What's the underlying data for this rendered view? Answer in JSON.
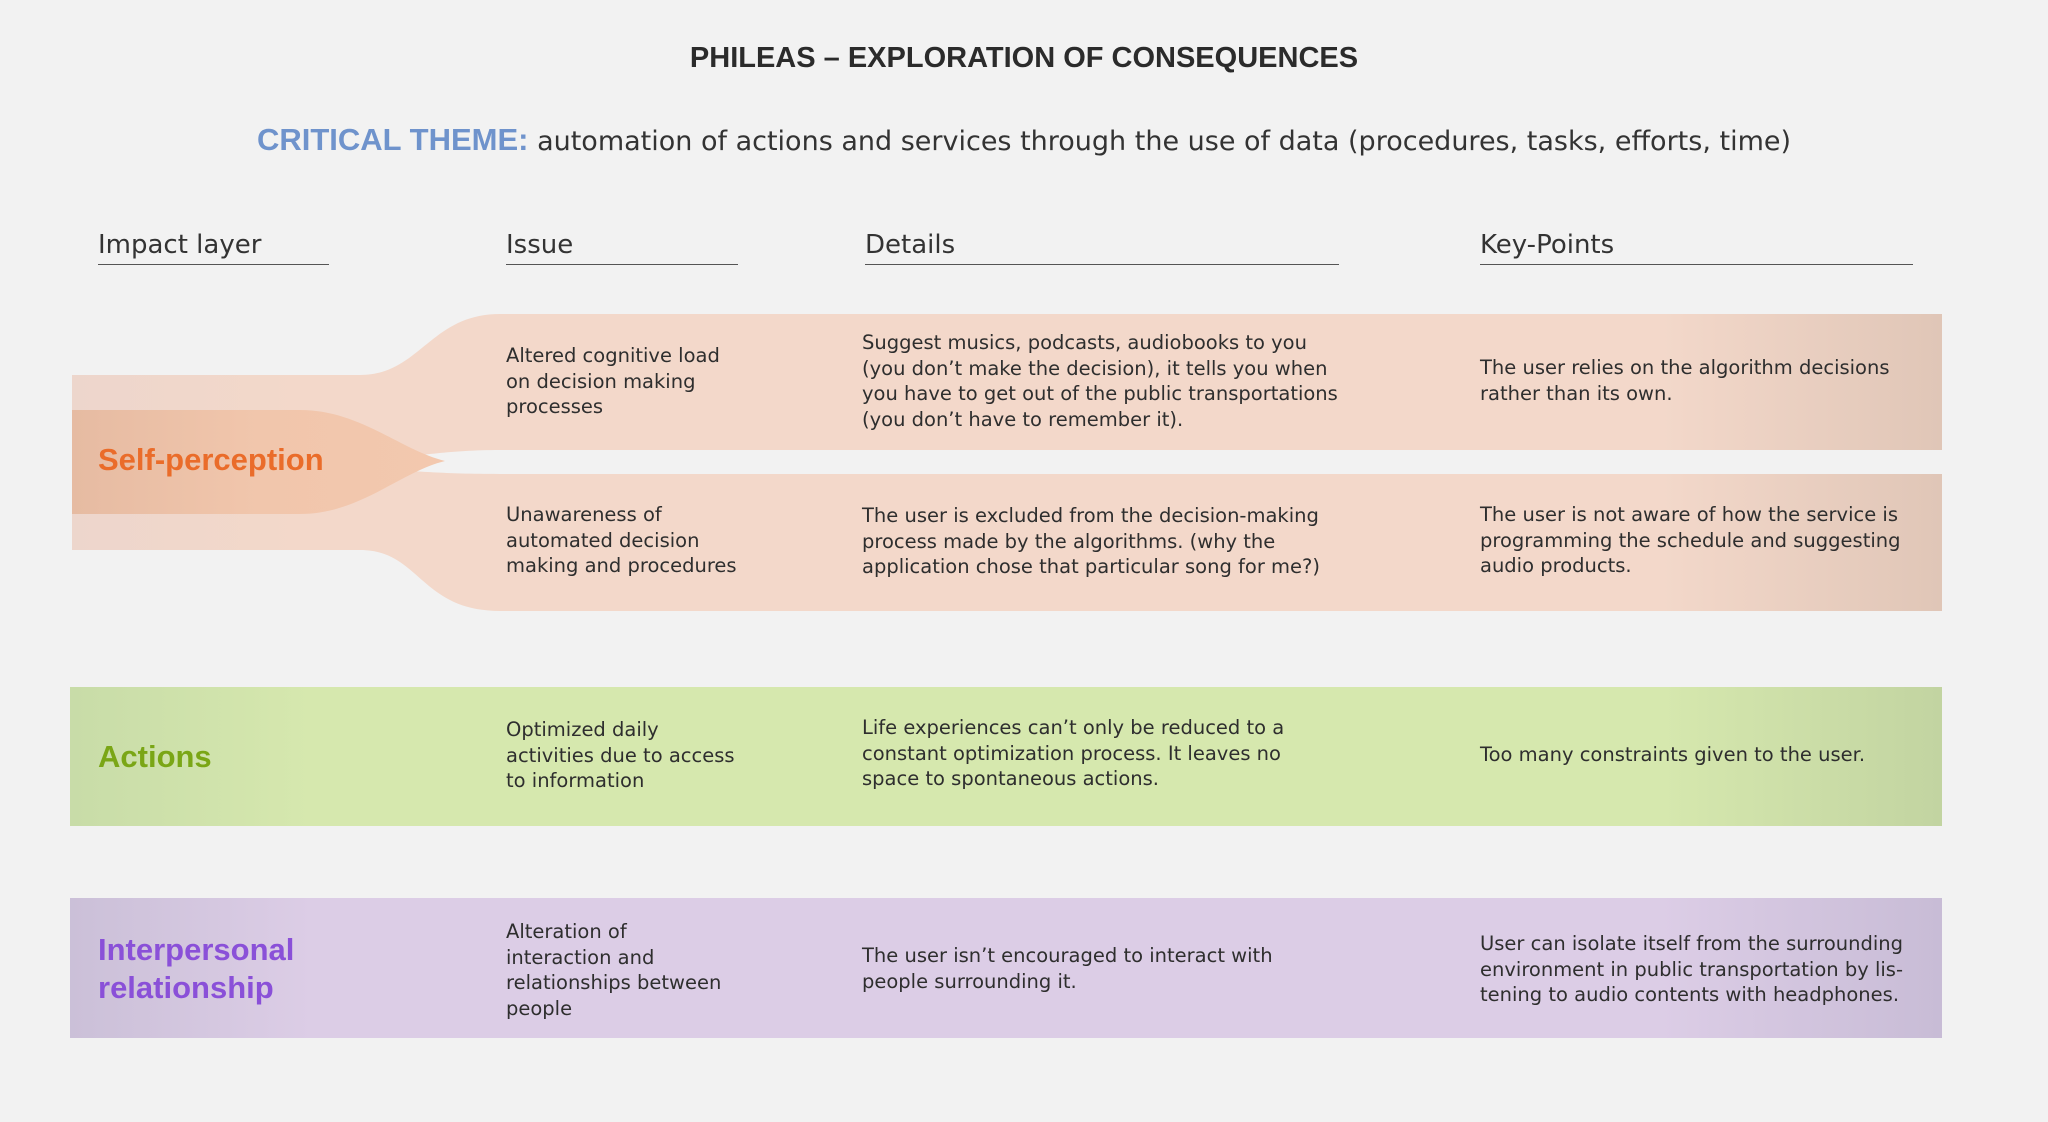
{
  "title": "PHILEAS – EXPLORATION OF CONSEQUENCES",
  "critical_theme": {
    "label": "CRITICAL THEME:",
    "text": "automation of actions and services through the use of data (procedures, tasks, efforts, time)"
  },
  "columns": [
    "Impact layer",
    "Issue",
    "Details",
    "Key-Points"
  ],
  "layers": [
    {
      "name": "Self-perception",
      "color": "#ea6c2a",
      "rows": [
        {
          "issue": "Altered cognitive load\non decision making\nprocesses",
          "details": "Suggest musics, podcasts, audiobooks to you\n(you don’t make the decision), it tells you when\nyou have to get out of the public transportations\n(you don’t have to remember it).",
          "key_point": "The user relies on the algorithm decisions\nrather than its own."
        },
        {
          "issue": "Unawareness of\nautomated decision\nmaking and procedures",
          "details": "The user is excluded from the decision-making\nprocess made by the algorithms. (why the\napplication chose that particular song for me?)",
          "key_point": "The user is not aware of how the service is\nprogramming the schedule and suggesting\naudio products."
        }
      ]
    },
    {
      "name": "Actions",
      "color": "#7aa616",
      "rows": [
        {
          "issue": "Optimized daily\nactivities due to access\nto information",
          "details": "Life experiences can’t only be reduced to a\nconstant optimization process. It leaves no\nspace to spontaneous actions.",
          "key_point": "Too many constraints given to the user."
        }
      ]
    },
    {
      "name": "Interpersonal\nrelationship",
      "color": "#8a50d8",
      "rows": [
        {
          "issue": "Alteration of\ninteraction and\nrelationships between\npeople",
          "details": "The user isn’t encouraged to interact with\npeople surrounding it.",
          "key_point": "User can isolate itself from the surrounding\nenvironment in public transportation by lis-\ntening to audio contents with headphones."
        }
      ]
    }
  ]
}
